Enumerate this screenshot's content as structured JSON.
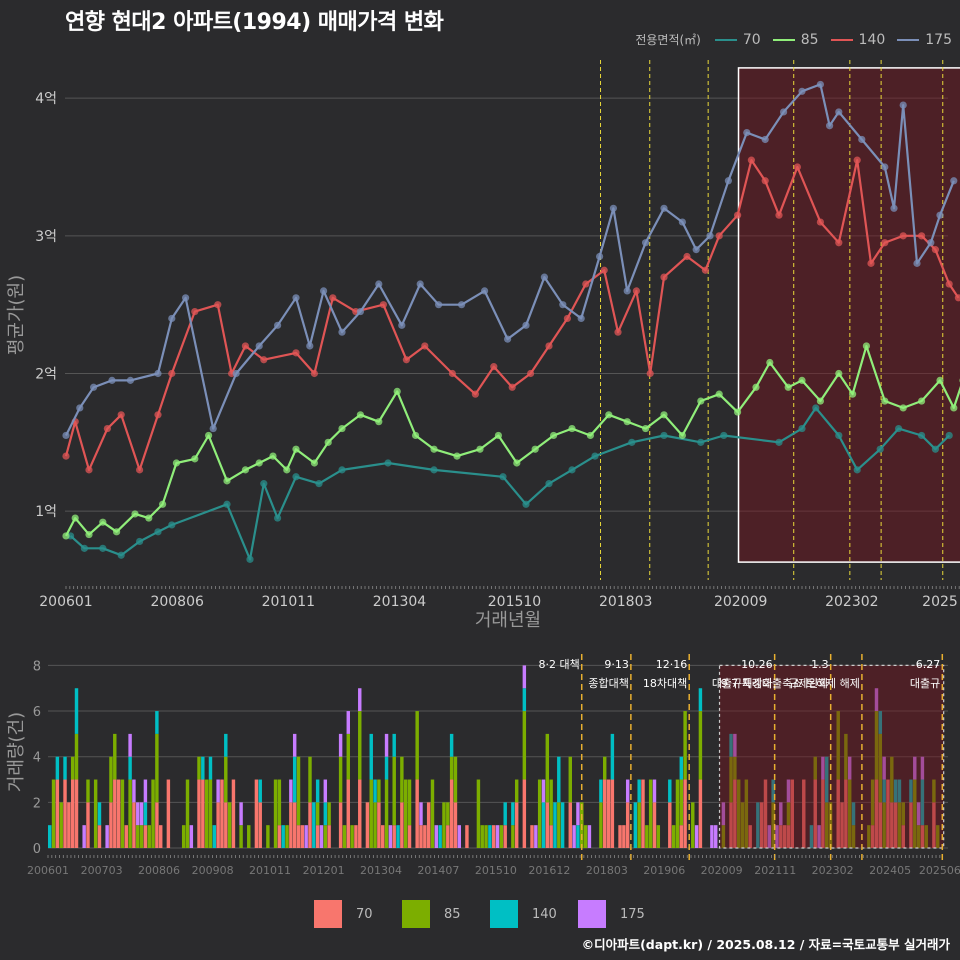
{
  "title": "연향 현대2 아파트(1994) 매매가격 변화",
  "credit": "©디아파트(dapt.kr) / 2025.08.12 / 자료=국토교통부 실거래가",
  "legend": {
    "title": "전용면적(㎡)",
    "items": [
      {
        "label": "70",
        "line_color": "#2a8f8c",
        "bar_color": "#f8766d"
      },
      {
        "label": "85",
        "line_color": "#90ee7a",
        "bar_color": "#7cae00"
      },
      {
        "label": "140",
        "line_color": "#e05555",
        "bar_color": "#00bfc4"
      },
      {
        "label": "175",
        "line_color": "#7b8fb8",
        "bar_color": "#c77cff"
      }
    ]
  },
  "chart_data": [
    {
      "type": "line",
      "title": "연향 현대2 아파트(1994) 매매가격 변화",
      "xlabel": "거래년월",
      "ylabel": "평균가(원)",
      "ylim": [
        0.5,
        4.35
      ],
      "y_ticks": [
        {
          "value": 1,
          "label": "1억"
        },
        {
          "value": 2,
          "label": "2억"
        },
        {
          "value": 3,
          "label": "3억"
        },
        {
          "value": 4,
          "label": "4억"
        }
      ],
      "x_ticks": [
        "200601",
        "200806",
        "201011",
        "201304",
        "201510",
        "201803",
        "202009",
        "202302",
        "2025"
      ],
      "events": [
        2017.62,
        2018.69,
        2019.96,
        2021.82,
        2023.04,
        2023.72,
        2025.06,
        2025.47
      ],
      "highlight": {
        "from": 2020.62,
        "to": 2025.5,
        "y_from": 0.63,
        "y_to": 4.22
      },
      "series": [
        {
          "name": "70",
          "color": "#2a8f8c",
          "points": [
            [
              2006.1,
              0.82
            ],
            [
              2006.4,
              0.73
            ],
            [
              2006.8,
              0.73
            ],
            [
              2007.2,
              0.68
            ],
            [
              2007.6,
              0.78
            ],
            [
              2008.0,
              0.85
            ],
            [
              2008.3,
              0.9
            ],
            [
              2009.5,
              1.05
            ],
            [
              2010.0,
              0.65
            ],
            [
              2010.3,
              1.2
            ],
            [
              2010.6,
              0.95
            ],
            [
              2011.0,
              1.25
            ],
            [
              2011.5,
              1.2
            ],
            [
              2012.0,
              1.3
            ],
            [
              2013.0,
              1.35
            ],
            [
              2014.0,
              1.3
            ],
            [
              2015.5,
              1.25
            ],
            [
              2016.0,
              1.05
            ],
            [
              2016.5,
              1.2
            ],
            [
              2017.0,
              1.3
            ],
            [
              2017.5,
              1.4
            ],
            [
              2018.3,
              1.5
            ],
            [
              2019.0,
              1.55
            ],
            [
              2019.8,
              1.5
            ],
            [
              2020.3,
              1.55
            ],
            [
              2021.5,
              1.5
            ],
            [
              2022.0,
              1.6
            ],
            [
              2022.3,
              1.75
            ],
            [
              2022.8,
              1.55
            ],
            [
              2023.2,
              1.3
            ],
            [
              2023.7,
              1.45
            ],
            [
              2024.1,
              1.6
            ],
            [
              2024.6,
              1.55
            ],
            [
              2024.9,
              1.45
            ],
            [
              2025.2,
              1.55
            ]
          ]
        },
        {
          "name": "85",
          "color": "#90ee7a",
          "points": [
            [
              2006.0,
              0.82
            ],
            [
              2006.2,
              0.95
            ],
            [
              2006.5,
              0.83
            ],
            [
              2006.8,
              0.92
            ],
            [
              2007.1,
              0.85
            ],
            [
              2007.5,
              0.98
            ],
            [
              2007.8,
              0.95
            ],
            [
              2008.1,
              1.05
            ],
            [
              2008.4,
              1.35
            ],
            [
              2008.8,
              1.38
            ],
            [
              2009.1,
              1.55
            ],
            [
              2009.5,
              1.22
            ],
            [
              2009.9,
              1.3
            ],
            [
              2010.2,
              1.35
            ],
            [
              2010.5,
              1.4
            ],
            [
              2010.8,
              1.3
            ],
            [
              2011.0,
              1.45
            ],
            [
              2011.4,
              1.35
            ],
            [
              2011.7,
              1.5
            ],
            [
              2012.0,
              1.6
            ],
            [
              2012.4,
              1.7
            ],
            [
              2012.8,
              1.65
            ],
            [
              2013.2,
              1.87
            ],
            [
              2013.6,
              1.55
            ],
            [
              2014.0,
              1.45
            ],
            [
              2014.5,
              1.4
            ],
            [
              2015.0,
              1.45
            ],
            [
              2015.4,
              1.55
            ],
            [
              2015.8,
              1.35
            ],
            [
              2016.2,
              1.45
            ],
            [
              2016.6,
              1.55
            ],
            [
              2017.0,
              1.6
            ],
            [
              2017.4,
              1.55
            ],
            [
              2017.8,
              1.7
            ],
            [
              2018.2,
              1.65
            ],
            [
              2018.6,
              1.6
            ],
            [
              2019.0,
              1.7
            ],
            [
              2019.4,
              1.55
            ],
            [
              2019.8,
              1.8
            ],
            [
              2020.2,
              1.85
            ],
            [
              2020.6,
              1.72
            ],
            [
              2021.0,
              1.9
            ],
            [
              2021.3,
              2.08
            ],
            [
              2021.7,
              1.9
            ],
            [
              2022.0,
              1.95
            ],
            [
              2022.4,
              1.8
            ],
            [
              2022.8,
              2.0
            ],
            [
              2023.1,
              1.85
            ],
            [
              2023.4,
              2.2
            ],
            [
              2023.8,
              1.8
            ],
            [
              2024.2,
              1.75
            ],
            [
              2024.6,
              1.8
            ],
            [
              2025.0,
              1.95
            ],
            [
              2025.3,
              1.75
            ],
            [
              2025.5,
              1.95
            ]
          ]
        },
        {
          "name": "140",
          "color": "#e05555",
          "points": [
            [
              2006.0,
              1.4
            ],
            [
              2006.2,
              1.65
            ],
            [
              2006.5,
              1.3
            ],
            [
              2006.9,
              1.6
            ],
            [
              2007.2,
              1.7
            ],
            [
              2007.6,
              1.3
            ],
            [
              2008.0,
              1.7
            ],
            [
              2008.3,
              2.0
            ],
            [
              2008.8,
              2.45
            ],
            [
              2009.3,
              2.5
            ],
            [
              2009.6,
              2.0
            ],
            [
              2009.9,
              2.2
            ],
            [
              2010.3,
              2.1
            ],
            [
              2011.0,
              2.15
            ],
            [
              2011.4,
              2.0
            ],
            [
              2011.8,
              2.55
            ],
            [
              2012.3,
              2.45
            ],
            [
              2012.9,
              2.5
            ],
            [
              2013.4,
              2.1
            ],
            [
              2013.8,
              2.2
            ],
            [
              2014.4,
              2.0
            ],
            [
              2014.9,
              1.85
            ],
            [
              2015.3,
              2.05
            ],
            [
              2015.7,
              1.9
            ],
            [
              2016.1,
              2.0
            ],
            [
              2016.5,
              2.2
            ],
            [
              2016.9,
              2.4
            ],
            [
              2017.3,
              2.65
            ],
            [
              2017.7,
              2.75
            ],
            [
              2018.0,
              2.3
            ],
            [
              2018.4,
              2.6
            ],
            [
              2018.7,
              2.0
            ],
            [
              2019.0,
              2.7
            ],
            [
              2019.5,
              2.85
            ],
            [
              2019.9,
              2.75
            ],
            [
              2020.2,
              3.0
            ],
            [
              2020.6,
              3.15
            ],
            [
              2020.9,
              3.55
            ],
            [
              2021.2,
              3.4
            ],
            [
              2021.5,
              3.15
            ],
            [
              2021.9,
              3.5
            ],
            [
              2022.4,
              3.1
            ],
            [
              2022.8,
              2.95
            ],
            [
              2023.2,
              3.55
            ],
            [
              2023.5,
              2.8
            ],
            [
              2023.8,
              2.95
            ],
            [
              2024.2,
              3.0
            ],
            [
              2024.6,
              3.0
            ],
            [
              2024.9,
              2.9
            ],
            [
              2025.2,
              2.65
            ],
            [
              2025.4,
              2.55
            ]
          ]
        },
        {
          "name": "175",
          "color": "#7b8fb8",
          "points": [
            [
              2006.0,
              1.55
            ],
            [
              2006.3,
              1.75
            ],
            [
              2006.6,
              1.9
            ],
            [
              2007.0,
              1.95
            ],
            [
              2007.4,
              1.95
            ],
            [
              2008.0,
              2.0
            ],
            [
              2008.3,
              2.4
            ],
            [
              2008.6,
              2.55
            ],
            [
              2009.2,
              1.6
            ],
            [
              2009.7,
              2.0
            ],
            [
              2010.2,
              2.2
            ],
            [
              2010.6,
              2.35
            ],
            [
              2011.0,
              2.55
            ],
            [
              2011.3,
              2.2
            ],
            [
              2011.6,
              2.6
            ],
            [
              2012.0,
              2.3
            ],
            [
              2012.4,
              2.45
            ],
            [
              2012.8,
              2.65
            ],
            [
              2013.3,
              2.35
            ],
            [
              2013.7,
              2.65
            ],
            [
              2014.1,
              2.5
            ],
            [
              2014.6,
              2.5
            ],
            [
              2015.1,
              2.6
            ],
            [
              2015.6,
              2.25
            ],
            [
              2016.0,
              2.35
            ],
            [
              2016.4,
              2.7
            ],
            [
              2016.8,
              2.5
            ],
            [
              2017.2,
              2.4
            ],
            [
              2017.6,
              2.85
            ],
            [
              2017.9,
              3.2
            ],
            [
              2018.2,
              2.6
            ],
            [
              2018.6,
              2.95
            ],
            [
              2019.0,
              3.2
            ],
            [
              2019.4,
              3.1
            ],
            [
              2019.7,
              2.9
            ],
            [
              2020.0,
              3.0
            ],
            [
              2020.4,
              3.4
            ],
            [
              2020.8,
              3.75
            ],
            [
              2021.2,
              3.7
            ],
            [
              2021.6,
              3.9
            ],
            [
              2022.0,
              4.05
            ],
            [
              2022.4,
              4.1
            ],
            [
              2022.6,
              3.8
            ],
            [
              2022.8,
              3.9
            ],
            [
              2023.3,
              3.7
            ],
            [
              2023.8,
              3.5
            ],
            [
              2024.0,
              3.2
            ],
            [
              2024.2,
              3.95
            ],
            [
              2024.5,
              2.8
            ],
            [
              2024.8,
              2.95
            ],
            [
              2025.0,
              3.15
            ],
            [
              2025.3,
              3.4
            ]
          ]
        }
      ]
    },
    {
      "type": "bar",
      "ylabel": "거래량(건)",
      "ylim": [
        0,
        8.5
      ],
      "y_ticks": [
        0,
        2,
        4,
        6,
        8
      ],
      "x_ticks": [
        "200601",
        "200703",
        "200806",
        "200908",
        "201011",
        "201201",
        "201304",
        "201407",
        "201510",
        "201612",
        "201803",
        "201906",
        "202009",
        "202111",
        "202302",
        "202405",
        "202506"
      ],
      "highlight": {
        "from": 2020.62,
        "to": 2025.5
      },
      "events": [
        {
          "x": 2017.62,
          "label": "8·2 대책",
          "line2": ""
        },
        {
          "x": 2018.69,
          "label": "9·13",
          "line2": "종합대책"
        },
        {
          "x": 2019.96,
          "label": "12·16",
          "line2": "18차대책"
        },
        {
          "x": 2021.82,
          "label": "10.26",
          "line2": "대출규제강화"
        },
        {
          "x": 2023.04,
          "label": "1.3",
          "line2": "규제완화"
        },
        {
          "x": 2023.72,
          "label": "",
          "line2": "9.7 특례대출축소 토허제 해제"
        },
        {
          "x": 2025.47,
          "label": "6.27",
          "line2": "대출규"
        }
      ],
      "series_order": [
        "70",
        "85",
        "140",
        "175"
      ]
    }
  ]
}
